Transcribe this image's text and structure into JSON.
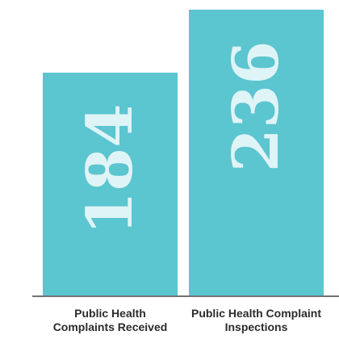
{
  "chart_data": {
    "type": "bar",
    "categories": [
      "Public Health Complaints Received",
      "Public Health Complaint Inspections"
    ],
    "values": [
      184,
      236
    ],
    "color": "#5bc5d0"
  }
}
